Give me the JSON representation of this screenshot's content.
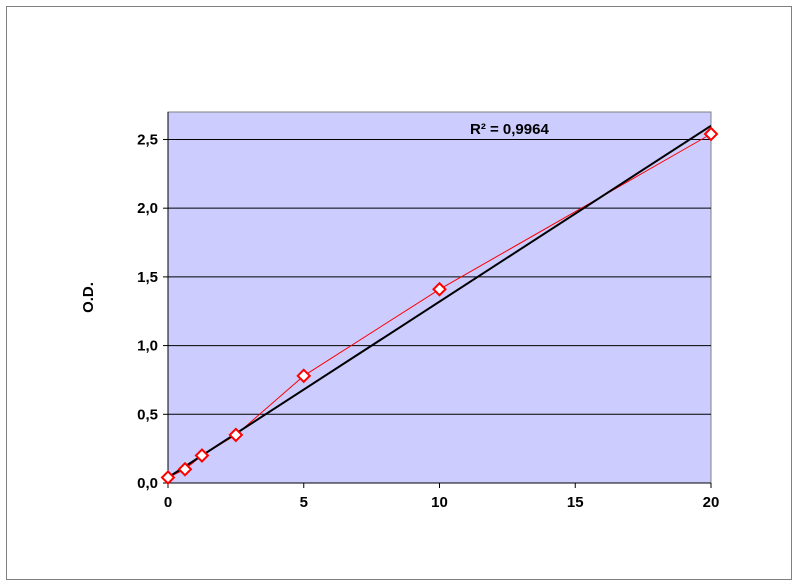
{
  "chart_data": {
    "type": "scatter",
    "title": "",
    "xlabel": "",
    "ylabel": "O.D.",
    "xlim": [
      0,
      20
    ],
    "ylim": [
      0,
      2.5
    ],
    "x_ticks": [
      "0",
      "5",
      "10",
      "15",
      "20"
    ],
    "y_ticks": [
      "0,0",
      "0,5",
      "1,0",
      "1,5",
      "2,0",
      "2,5"
    ],
    "grid": "horizontal",
    "plot_background": "#ccccff",
    "series": [
      {
        "x": [
          0,
          0.625,
          1.25,
          2.5,
          5,
          10,
          20
        ],
        "y": [
          0.04,
          0.1,
          0.2,
          0.35,
          0.78,
          1.41,
          2.54
        ],
        "color": "#ff0000",
        "marker": "diamond",
        "connected": true
      }
    ],
    "trendline": {
      "type": "linear",
      "x": [
        0,
        20
      ],
      "y": [
        0.04,
        2.6
      ],
      "color": "#000000"
    },
    "annotation": "R² = 0,9964"
  }
}
